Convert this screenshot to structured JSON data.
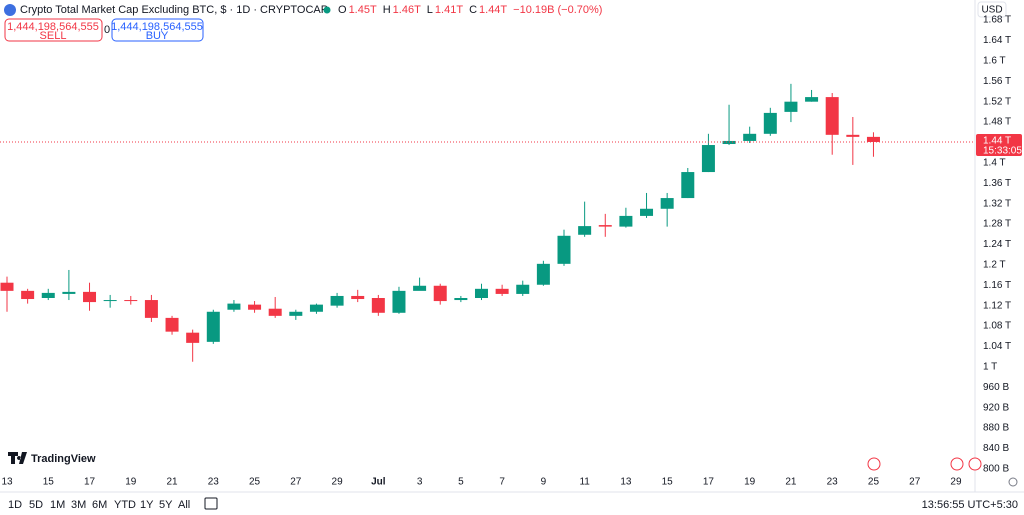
{
  "chart_data": {
    "type": "candlestick",
    "title": "Crypto Total Market Cap Excluding BTC, $ · 1D · CRYPTOCAP",
    "categories": [
      "13",
      null,
      "15",
      null,
      "17",
      null,
      "19",
      null,
      "21",
      null,
      "23",
      null,
      "25",
      null,
      "27",
      null,
      "29",
      null,
      "Jul",
      null,
      "3",
      null,
      "5",
      null,
      "7",
      null,
      "9",
      null,
      "11",
      null,
      "13",
      null,
      "15",
      null,
      "17",
      null,
      "19",
      null,
      "21",
      null,
      "23",
      null,
      "25",
      null,
      "27",
      null,
      "29"
    ],
    "open": [
      1.165,
      1.149,
      1.135,
      1.143,
      1.147,
      1.129,
      1.131,
      1.131,
      1.096,
      1.067,
      1.049,
      1.112,
      1.122,
      1.114,
      1.1,
      1.108,
      1.12,
      1.139,
      1.135,
      1.106,
      1.149,
      1.159,
      1.131,
      1.135,
      1.153,
      1.143,
      1.161,
      1.202,
      1.259,
      1.278,
      1.275,
      1.296,
      1.31,
      1.331,
      1.382,
      1.437,
      1.443,
      1.457,
      1.5,
      1.52,
      1.529,
      1.455,
      1.451,
      null,
      null,
      null,
      null
    ],
    "high": [
      1.177,
      1.153,
      1.153,
      1.19,
      1.165,
      1.141,
      1.139,
      1.141,
      1.1,
      1.073,
      1.112,
      1.131,
      1.129,
      1.137,
      1.112,
      1.124,
      1.145,
      1.151,
      1.141,
      1.157,
      1.175,
      1.163,
      1.139,
      1.163,
      1.161,
      1.169,
      1.208,
      1.269,
      1.324,
      1.3,
      1.312,
      1.341,
      1.341,
      1.39,
      1.457,
      1.514,
      1.471,
      1.508,
      1.555,
      1.543,
      1.537,
      1.49,
      1.46,
      null,
      null,
      null,
      null
    ],
    "low": [
      1.108,
      1.124,
      1.131,
      1.131,
      1.11,
      1.116,
      1.122,
      1.088,
      1.063,
      1.01,
      1.045,
      1.108,
      1.106,
      1.096,
      1.092,
      1.104,
      1.116,
      1.127,
      1.1,
      1.104,
      1.151,
      1.122,
      1.127,
      1.131,
      1.139,
      1.139,
      1.159,
      1.198,
      1.255,
      1.255,
      1.273,
      1.292,
      1.275,
      1.331,
      1.382,
      1.435,
      1.439,
      1.453,
      1.48,
      1.52,
      1.416,
      1.396,
      1.412,
      null,
      null,
      null,
      null
    ],
    "close": [
      1.149,
      1.133,
      1.145,
      1.147,
      1.127,
      1.131,
      1.129,
      1.096,
      1.069,
      1.047,
      1.108,
      1.124,
      1.112,
      1.1,
      1.108,
      1.122,
      1.139,
      1.133,
      1.106,
      1.149,
      1.159,
      1.129,
      1.135,
      1.153,
      1.143,
      1.161,
      1.202,
      1.257,
      1.276,
      1.275,
      1.296,
      1.31,
      1.331,
      1.382,
      1.435,
      1.443,
      1.457,
      1.498,
      1.52,
      1.529,
      1.455,
      1.451,
      1.441,
      null,
      null,
      null,
      null
    ],
    "up_color": "#089981",
    "down_color": "#f23645",
    "ylim": [
      0.782,
      1.69
    ],
    "yticks": [
      {
        "value": 1.68,
        "label": "1.68 T"
      },
      {
        "value": 1.64,
        "label": "1.64 T"
      },
      {
        "value": 1.6,
        "label": "1.6 T"
      },
      {
        "value": 1.56,
        "label": "1.56 T"
      },
      {
        "value": 1.52,
        "label": "1.52 T"
      },
      {
        "value": 1.48,
        "label": "1.48 T"
      },
      {
        "value": 1.4,
        "label": "1.4 T"
      },
      {
        "value": 1.36,
        "label": "1.36 T"
      },
      {
        "value": 1.32,
        "label": "1.32 T"
      },
      {
        "value": 1.28,
        "label": "1.28 T"
      },
      {
        "value": 1.24,
        "label": "1.24 T"
      },
      {
        "value": 1.2,
        "label": "1.2 T"
      },
      {
        "value": 1.16,
        "label": "1.16 T"
      },
      {
        "value": 1.12,
        "label": "1.12 T"
      },
      {
        "value": 1.08,
        "label": "1.08 T"
      },
      {
        "value": 1.04,
        "label": "1.04 T"
      },
      {
        "value": 1,
        "label": "1 T"
      },
      {
        "value": 0.96,
        "label": "960 B"
      },
      {
        "value": 0.92,
        "label": "920 B"
      },
      {
        "value": 0.88,
        "label": "880 B"
      },
      {
        "value": 0.84,
        "label": "840 B"
      },
      {
        "value": 0.8,
        "label": "800 B"
      }
    ],
    "grid": false,
    "last_price_label": "1.44 T",
    "countdown": "15:33:05",
    "currency": "USD"
  },
  "header": {
    "ohlc": [
      {
        "key": "O",
        "value": "1.45T"
      },
      {
        "key": "H",
        "value": "1.46T"
      },
      {
        "key": "L",
        "value": "1.41T"
      },
      {
        "key": "C",
        "value": "1.44T"
      }
    ],
    "change": "−10.19B (−0.70%)",
    "sell_price": "1,444,198,564,555",
    "sell": "SELL",
    "spread": "0",
    "buy_price": "1,444,198,564,555",
    "buy": "BUY"
  },
  "logo": "TradingView",
  "toolbar": {
    "ranges": [
      "1D",
      "5D",
      "1M",
      "3M",
      "6M",
      "YTD",
      "1Y",
      "5Y",
      "All"
    ],
    "time": "13:56:55 UTC+5:30"
  }
}
